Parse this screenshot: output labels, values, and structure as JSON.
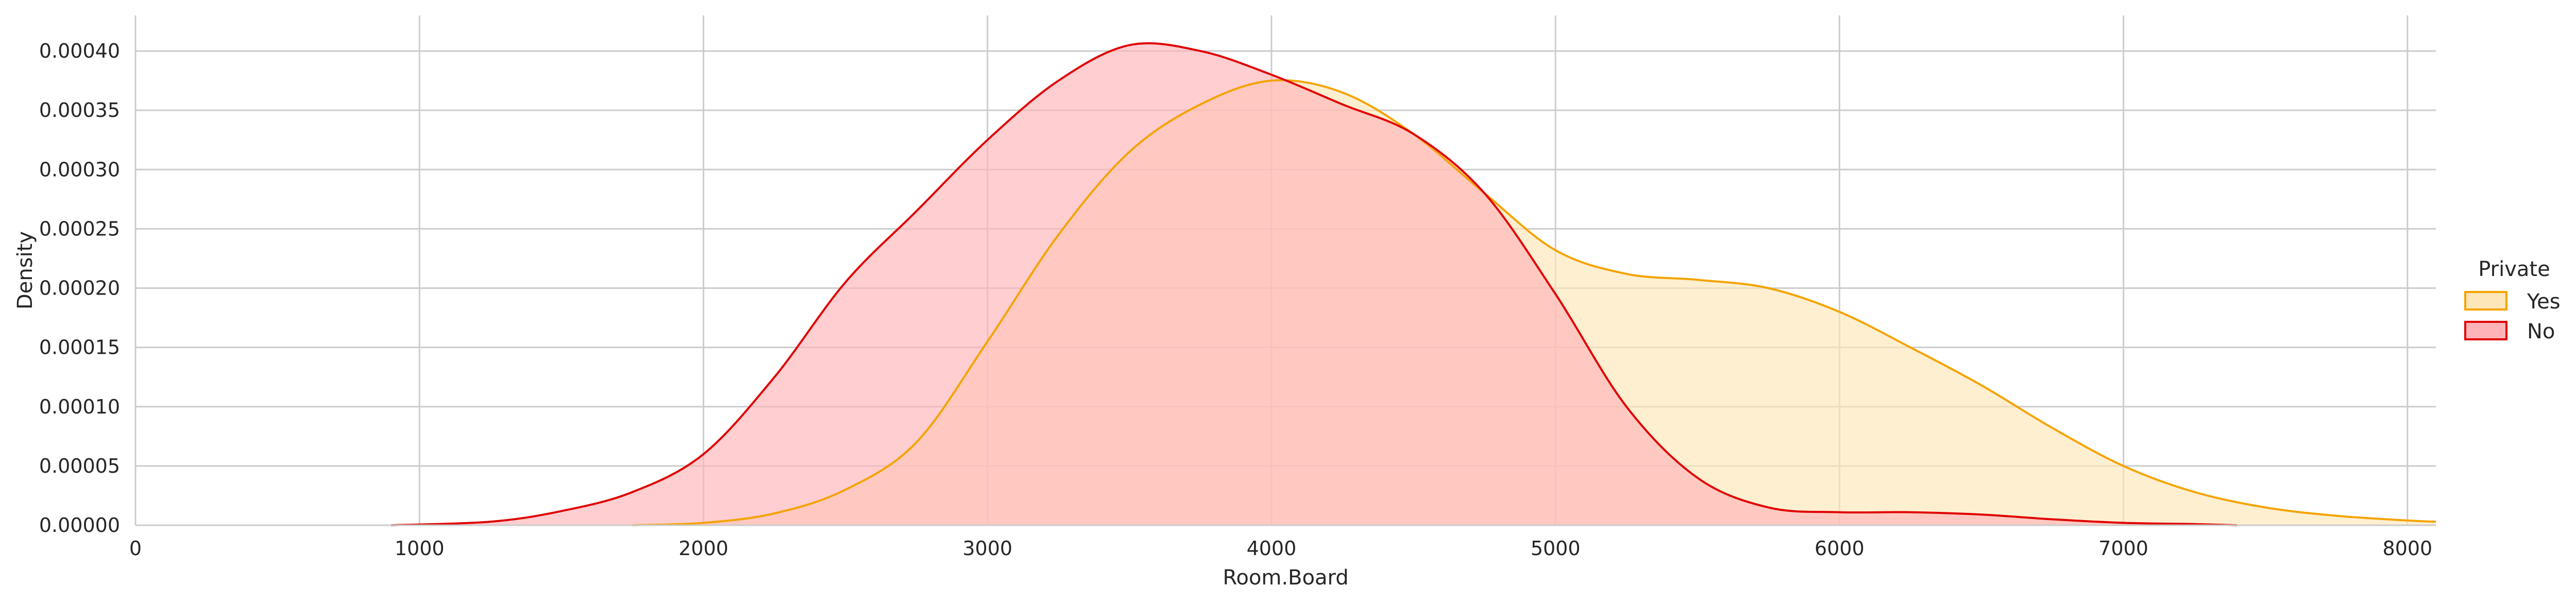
{
  "chart_data": {
    "type": "area",
    "title": "",
    "xlabel": "Room.Board",
    "ylabel": "Density",
    "xlim": [
      0,
      8100
    ],
    "ylim": [
      0,
      0.00043
    ],
    "x_ticks": [
      0,
      1000,
      2000,
      3000,
      4000,
      5000,
      6000,
      7000,
      8000
    ],
    "y_ticks": [
      0,
      5e-05,
      0.0001,
      0.00015,
      0.0002,
      0.00025,
      0.0003,
      0.00035,
      0.0004
    ],
    "y_tick_labels": [
      "0.00000",
      "0.00005",
      "0.00010",
      "0.00015",
      "0.00020",
      "0.00025",
      "0.00030",
      "0.00035",
      "0.00040"
    ],
    "grid": true,
    "legend": {
      "title": "Private",
      "placement": "center-right"
    },
    "series": [
      {
        "name": "Yes",
        "color": "#f5a300",
        "fill": "#fde6b8",
        "points": [
          [
            1750,
            0
          ],
          [
            2000,
            2e-06
          ],
          [
            2250,
            1e-05
          ],
          [
            2500,
            3e-05
          ],
          [
            2750,
            7e-05
          ],
          [
            3000,
            0.000155
          ],
          [
            3250,
            0.000245
          ],
          [
            3500,
            0.000315
          ],
          [
            3750,
            0.000355
          ],
          [
            4000,
            0.000375
          ],
          [
            4250,
            0.000365
          ],
          [
            4500,
            0.00033
          ],
          [
            4750,
            0.00028
          ],
          [
            5000,
            0.000232
          ],
          [
            5250,
            0.000212
          ],
          [
            5500,
            0.000207
          ],
          [
            5750,
            0.0002
          ],
          [
            6000,
            0.00018
          ],
          [
            6250,
            0.00015
          ],
          [
            6500,
            0.000118
          ],
          [
            6750,
            8.2e-05
          ],
          [
            7000,
            5e-05
          ],
          [
            7250,
            2.8e-05
          ],
          [
            7500,
            1.5e-05
          ],
          [
            7750,
            8e-06
          ],
          [
            8000,
            4e-06
          ],
          [
            8100,
            3e-06
          ]
        ]
      },
      {
        "name": "No",
        "color": "#e00000",
        "fill": "#ffb3b8",
        "points": [
          [
            900,
            0
          ],
          [
            1250,
            3e-06
          ],
          [
            1500,
            1.2e-05
          ],
          [
            1750,
            2.8e-05
          ],
          [
            2000,
            6e-05
          ],
          [
            2250,
            0.000125
          ],
          [
            2500,
            0.000205
          ],
          [
            2750,
            0.000265
          ],
          [
            3000,
            0.000325
          ],
          [
            3250,
            0.000375
          ],
          [
            3500,
            0.000405
          ],
          [
            3750,
            0.0004
          ],
          [
            4000,
            0.00038
          ],
          [
            4250,
            0.000355
          ],
          [
            4500,
            0.00033
          ],
          [
            4750,
            0.00028
          ],
          [
            5000,
            0.000195
          ],
          [
            5250,
            0.0001
          ],
          [
            5500,
            4e-05
          ],
          [
            5750,
            1.5e-05
          ],
          [
            6000,
            1.1e-05
          ],
          [
            6250,
            1.1e-05
          ],
          [
            6500,
            9e-06
          ],
          [
            6750,
            5e-06
          ],
          [
            7000,
            2e-06
          ],
          [
            7250,
            1e-06
          ],
          [
            7400,
            0
          ]
        ]
      }
    ]
  }
}
